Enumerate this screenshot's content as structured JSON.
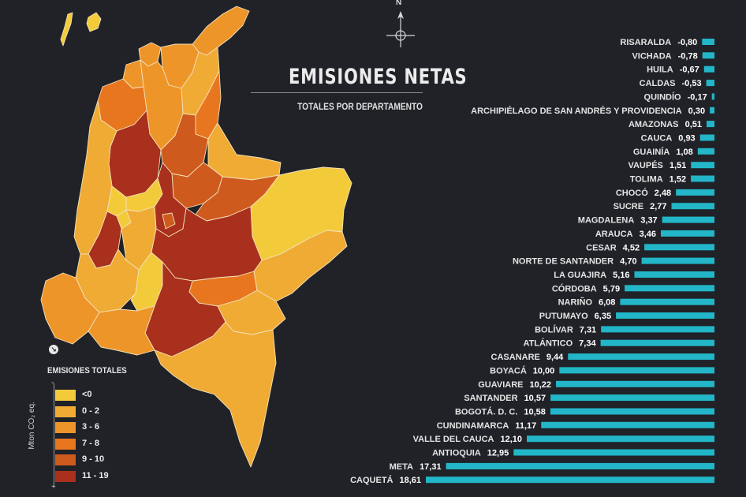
{
  "title": "EMISIONES NETAS",
  "subtitle": "TOTALES POR DEPARTAMENTO",
  "compass_label": "N",
  "colors": {
    "background": "#202227",
    "bar": "#22b6c8"
  },
  "legend": {
    "title": "EMISIONES TOTALES",
    "unit": "Mton CO₂ eq.",
    "minus_sign": "-",
    "plus_sign": "+",
    "items": [
      {
        "label": "<0",
        "color": "#f3cb3a"
      },
      {
        "label": "0 - 2",
        "color": "#f0ab35"
      },
      {
        "label": "3 - 6",
        "color": "#ee9529"
      },
      {
        "label": "7 - 8",
        "color": "#e7761f"
      },
      {
        "label": "9 - 10",
        "color": "#cf5a1e"
      },
      {
        "label": "11 - 19",
        "color": "#a8301c"
      }
    ]
  },
  "chart_data": {
    "type": "bar",
    "orientation": "horizontal",
    "title": "EMISIONES NETAS",
    "subtitle": "TOTALES POR DEPARTAMENTO",
    "unit": "Mton CO₂ eq.",
    "categories": [
      "RISARALDA",
      "VICHADA",
      "HUILA",
      "CALDAS",
      "QUINDÍO",
      "ARCHIPIÉLAGO DE SAN ANDRÉS Y PROVIDENCIA",
      "AMAZONAS",
      "CAUCA",
      "GUAINÍA",
      "VAUPÉS",
      "TOLIMA",
      "CHOCÓ",
      "SUCRE",
      "MAGDALENA",
      "ARAUCA",
      "CESAR",
      "NORTE DE SANTANDER",
      "LA GUAJIRA",
      "CÓRDOBA",
      "NARIÑO",
      "PUTUMAYO",
      "BOLÍVAR",
      "ATLÁNTICO",
      "CASANARE",
      "BOYACÁ",
      "GUAVIARE",
      "SANTANDER",
      "BOGOTÁ. D. C.",
      "CUNDINAMARCA",
      "VALLE DEL CAUCA",
      "ANTIOQUIA",
      "META",
      "CAQUETÁ"
    ],
    "values": [
      -0.8,
      -0.78,
      -0.67,
      -0.53,
      -0.17,
      0.3,
      0.51,
      0.93,
      1.08,
      1.51,
      1.52,
      2.48,
      2.77,
      3.37,
      3.46,
      4.52,
      4.7,
      5.16,
      5.79,
      6.08,
      6.35,
      7.31,
      7.34,
      9.44,
      10.0,
      10.22,
      10.57,
      10.58,
      11.17,
      12.1,
      12.95,
      17.31,
      18.61
    ],
    "value_labels": [
      "-0,80",
      "-0,78",
      "-0,67",
      "-0,53",
      "-0,17",
      "0,30",
      "0,51",
      "0,93",
      "1,08",
      "1,51",
      "1,52",
      "2,48",
      "2,77",
      "3,37",
      "3,46",
      "4,52",
      "4,70",
      "5,16",
      "5,79",
      "6,08",
      "6,35",
      "7,31",
      "7,34",
      "9,44",
      "10,00",
      "10,22",
      "10,57",
      "10,58",
      "11,17",
      "12,10",
      "12,95",
      "17,31",
      "18,61"
    ]
  }
}
